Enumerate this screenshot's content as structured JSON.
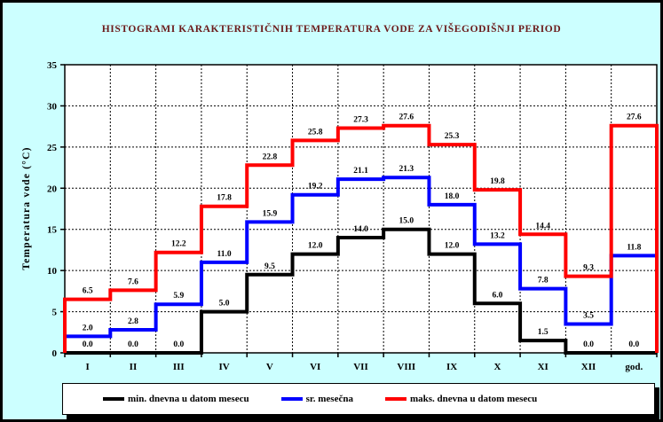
{
  "title": "HISTOGRAMI KARAKTERISTIČNIH TEMPERATURA VODE ZA VIŠEGODIŠNJI PERIOD",
  "y_axis_label": "Temperatura vode (°C)",
  "legend": [
    {
      "label": "min. dnevna u datom mesecu",
      "color": "#000000"
    },
    {
      "label": "sr. mesečna",
      "color": "#0000ff"
    },
    {
      "label": "maks. dnevna u datom mesecu",
      "color": "#ff0000"
    }
  ],
  "colors": {
    "background": "#ccffff",
    "plot_background": "#ffffff",
    "title": "#6b1a1a",
    "grid": "#000000",
    "series_min": "#000000",
    "series_mean": "#0000ff",
    "series_max": "#ff0000"
  },
  "chart_data": {
    "type": "line",
    "subtype": "step-histogram",
    "categories": [
      "I",
      "II",
      "III",
      "IV",
      "V",
      "VI",
      "VII",
      "VIII",
      "IX",
      "X",
      "XI",
      "XII",
      "god."
    ],
    "series": [
      {
        "name": "min. dnevna u datom mesecu",
        "color": "#000000",
        "values": [
          0.0,
          0.0,
          0.0,
          5.0,
          9.5,
          12.0,
          14.0,
          15.0,
          12.0,
          6.0,
          1.5,
          0.0,
          0.0
        ]
      },
      {
        "name": "sr. mesečna",
        "color": "#0000ff",
        "values": [
          2.0,
          2.8,
          5.9,
          11.0,
          15.9,
          19.2,
          21.1,
          21.3,
          18.0,
          13.2,
          7.8,
          3.5,
          11.8
        ]
      },
      {
        "name": "maks. dnevna u datom mesecu",
        "color": "#ff0000",
        "values": [
          6.5,
          7.6,
          12.2,
          17.8,
          22.8,
          25.8,
          27.3,
          27.6,
          25.3,
          19.8,
          14.4,
          9.3,
          27.6
        ]
      }
    ],
    "xlabel": "",
    "ylabel": "Temperatura vode (°C)",
    "ylim": [
      0,
      35
    ],
    "y_ticks": [
      0,
      5,
      10,
      15,
      20,
      25,
      30,
      35
    ],
    "grid": true,
    "legend_position": "bottom",
    "data_labels": true,
    "data_label_format": "0.0"
  }
}
